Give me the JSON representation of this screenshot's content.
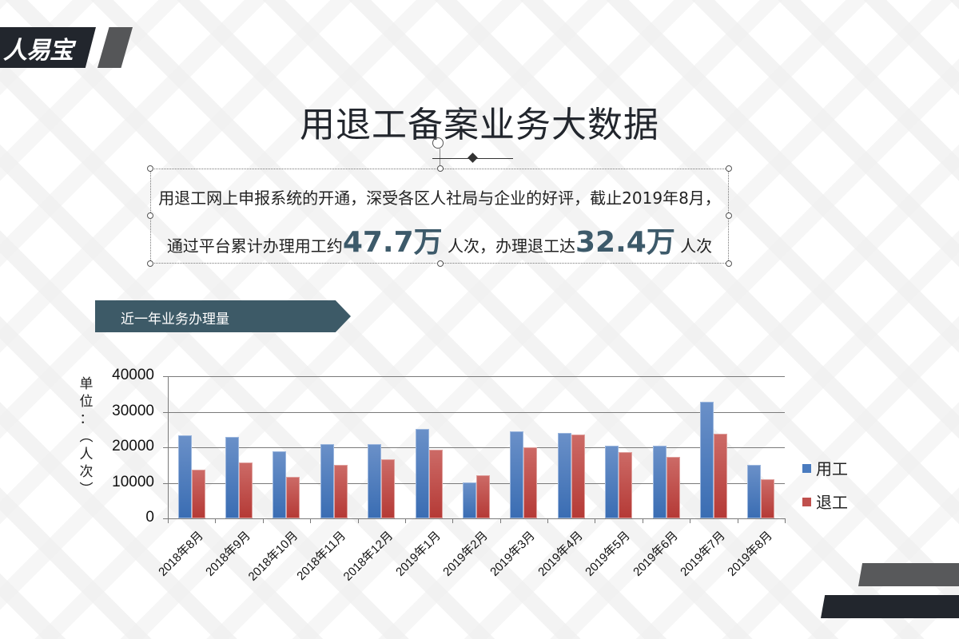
{
  "logo": {
    "text": "人易宝"
  },
  "header": {
    "title": "用退工备案业务大数据"
  },
  "summary": {
    "line1": "用退工网上申报系统的开通，深受各区人社局与企业的好评，截止2019年8月，",
    "line2_prefix": "通过平台累计办理用工约",
    "hire_total": "47.7万",
    "line2_mid": " 人次，办理退工达",
    "leave_total": "32.4万",
    "line2_suffix": " 人次"
  },
  "section": {
    "label": "近一年业务办理量"
  },
  "colors": {
    "hire": "#4a7bbf",
    "leave": "#c0504d",
    "tag": "#3d5a67",
    "accent_num": "#3d5a6a"
  },
  "chart_data": {
    "type": "bar",
    "title": "近一年业务办理量",
    "xlabel": "",
    "ylabel": "单位：（人次）",
    "ylim": [
      0,
      40000
    ],
    "yticks": [
      "40000",
      "30000",
      "20000",
      "10000",
      "0"
    ],
    "grid": true,
    "legend_position": "right",
    "categories": [
      "2018年8月",
      "2018年9月",
      "2018年10月",
      "2018年11月",
      "2018年12月",
      "2019年1月",
      "2019年2月",
      "2019年3月",
      "2019年4月",
      "2019年5月",
      "2019年6月",
      "2019年7月",
      "2019年8月"
    ],
    "series": [
      {
        "name": "用工",
        "values": [
          23300,
          22900,
          18900,
          21000,
          21000,
          25100,
          10100,
          24600,
          24000,
          20500,
          20500,
          32800,
          15000
        ]
      },
      {
        "name": "退工",
        "values": [
          13600,
          15800,
          11700,
          15000,
          16700,
          19400,
          12100,
          20000,
          23600,
          18700,
          17400,
          23800,
          11000
        ]
      }
    ]
  }
}
